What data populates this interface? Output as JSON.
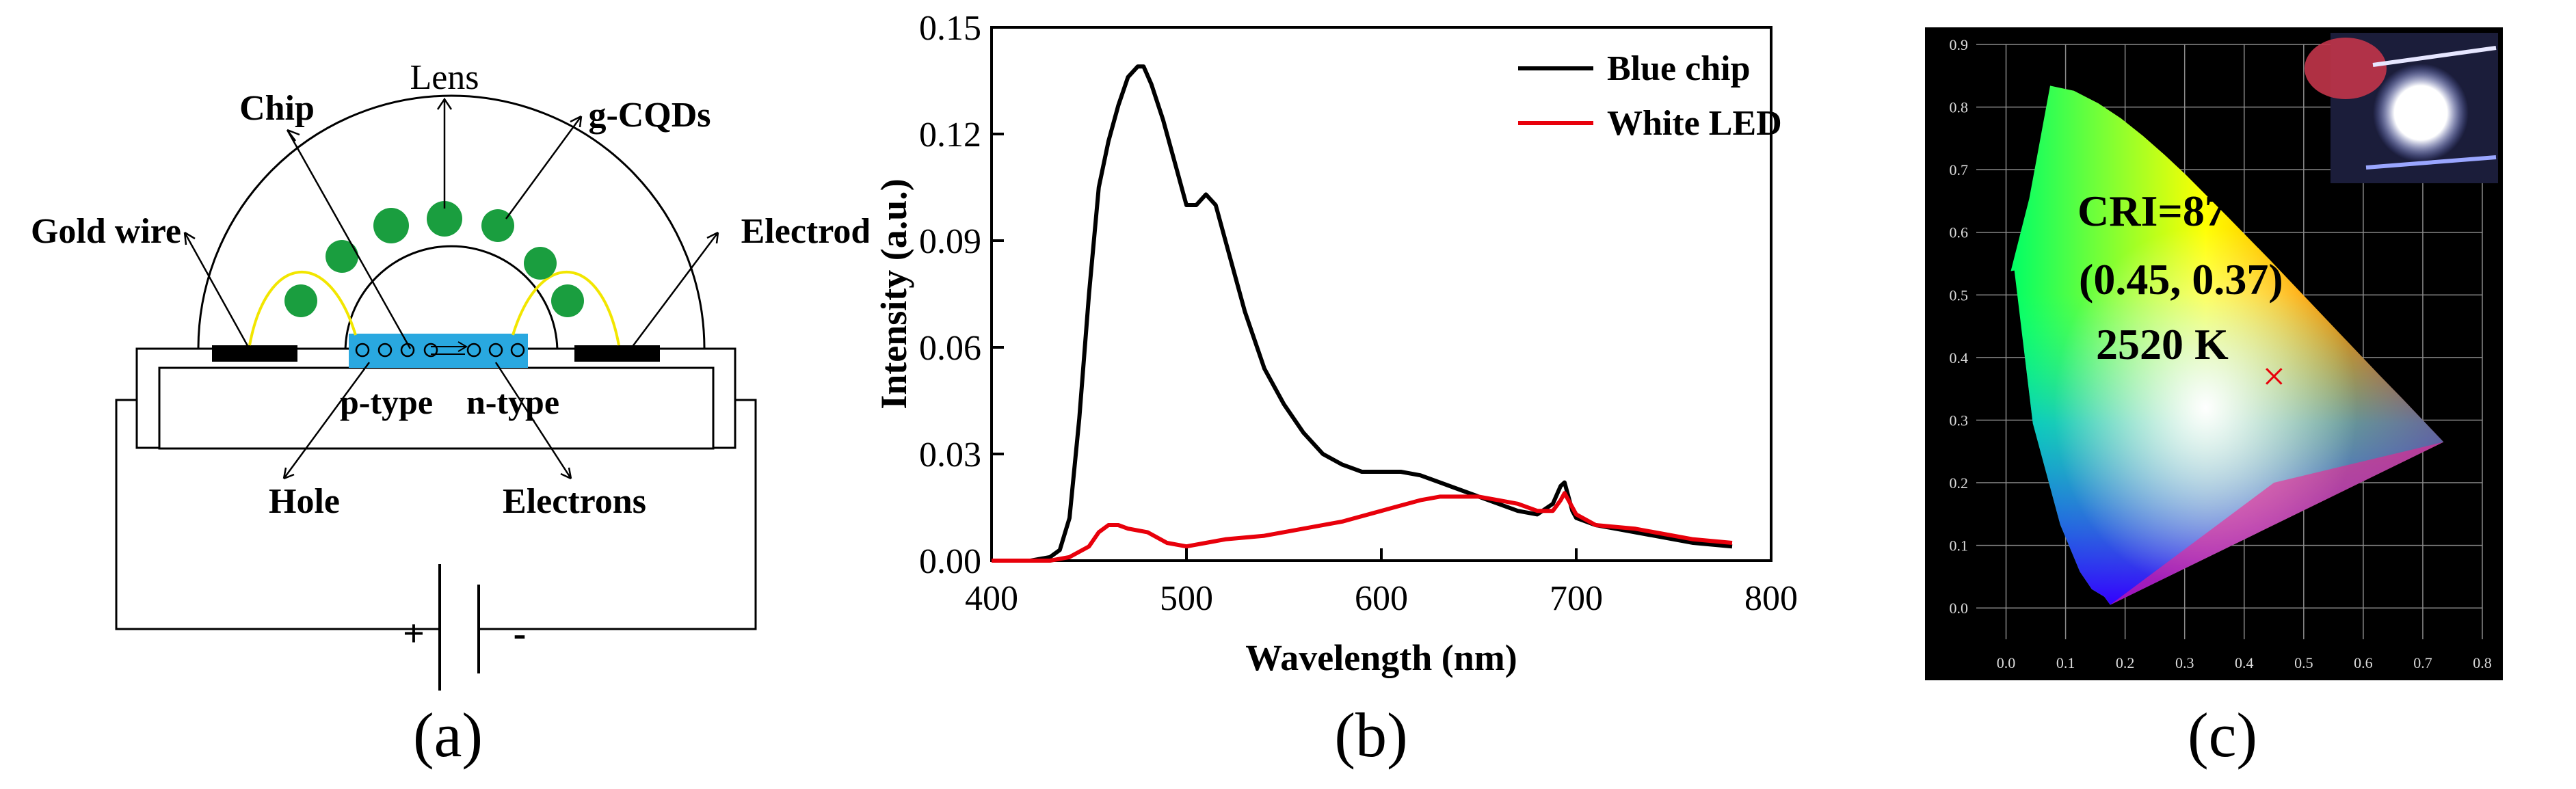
{
  "panel_a": {
    "caption": "(a)",
    "labels": {
      "lens": "Lens",
      "chip": "Chip",
      "gcqds": "g-CQDs",
      "gold_wire": "Gold wire",
      "electrode": "Electrode",
      "p_type": "p-type",
      "n_type": "n-type",
      "hole": "Hole",
      "electrons": "Electrons",
      "plus": "+",
      "minus": "-"
    },
    "colors": {
      "qd": "#1a9e3f",
      "chip": "#29a8e0",
      "wire": "#f2e600"
    }
  },
  "panel_b": {
    "caption": "(b)",
    "chart_data": {
      "type": "line",
      "xlabel": "Wavelength (nm)",
      "ylabel": "Intensity (a.u.)",
      "xlim": [
        400,
        800
      ],
      "ylim": [
        0,
        0.15
      ],
      "xticks": [
        "400",
        "500",
        "600",
        "700",
        "800"
      ],
      "yticks": [
        "0.00",
        "0.03",
        "0.06",
        "0.09",
        "0.12",
        "0.15"
      ],
      "legend_position": "top-right",
      "series": [
        {
          "name": "Blue chip",
          "color": "#000000",
          "x": [
            400,
            420,
            430,
            435,
            440,
            445,
            450,
            455,
            460,
            465,
            470,
            475,
            478,
            482,
            488,
            495,
            500,
            505,
            510,
            515,
            520,
            530,
            540,
            550,
            560,
            570,
            580,
            590,
            600,
            610,
            620,
            630,
            640,
            650,
            660,
            670,
            680,
            688,
            692,
            694,
            696,
            698,
            700,
            705,
            710,
            720,
            740,
            760,
            780
          ],
          "y": [
            0.0,
            0.0,
            0.001,
            0.003,
            0.012,
            0.04,
            0.075,
            0.105,
            0.118,
            0.128,
            0.136,
            0.139,
            0.139,
            0.134,
            0.124,
            0.11,
            0.1,
            0.1,
            0.103,
            0.1,
            0.09,
            0.07,
            0.054,
            0.044,
            0.036,
            0.03,
            0.027,
            0.025,
            0.025,
            0.025,
            0.024,
            0.022,
            0.02,
            0.018,
            0.016,
            0.014,
            0.013,
            0.016,
            0.021,
            0.022,
            0.018,
            0.014,
            0.012,
            0.011,
            0.01,
            0.009,
            0.007,
            0.005,
            0.004
          ]
        },
        {
          "name": "White LED",
          "color": "#e8000b",
          "x": [
            400,
            430,
            440,
            450,
            455,
            460,
            465,
            470,
            480,
            490,
            500,
            510,
            520,
            540,
            560,
            580,
            600,
            620,
            630,
            640,
            650,
            660,
            670,
            680,
            688,
            692,
            694,
            696,
            700,
            710,
            730,
            760,
            780
          ],
          "y": [
            0.0,
            0.0,
            0.001,
            0.004,
            0.008,
            0.01,
            0.01,
            0.009,
            0.008,
            0.005,
            0.004,
            0.005,
            0.006,
            0.007,
            0.009,
            0.011,
            0.014,
            0.017,
            0.018,
            0.018,
            0.018,
            0.017,
            0.016,
            0.014,
            0.014,
            0.017,
            0.019,
            0.017,
            0.013,
            0.01,
            0.009,
            0.006,
            0.005
          ]
        }
      ]
    }
  },
  "panel_c": {
    "caption": "(c)",
    "cri": "CRI=87",
    "coords": "(0.45, 0.37)",
    "cct": "2520 K",
    "marker": "×",
    "marker_xy": [
      0.45,
      0.37
    ],
    "xticks": [
      "0.0",
      "0.1",
      "0.2",
      "0.3",
      "0.4",
      "0.5",
      "0.6",
      "0.7",
      "0.8"
    ],
    "yticks": [
      "0.0",
      "0.1",
      "0.2",
      "0.3",
      "0.4",
      "0.5",
      "0.6",
      "0.7",
      "0.8",
      "0.9"
    ]
  }
}
